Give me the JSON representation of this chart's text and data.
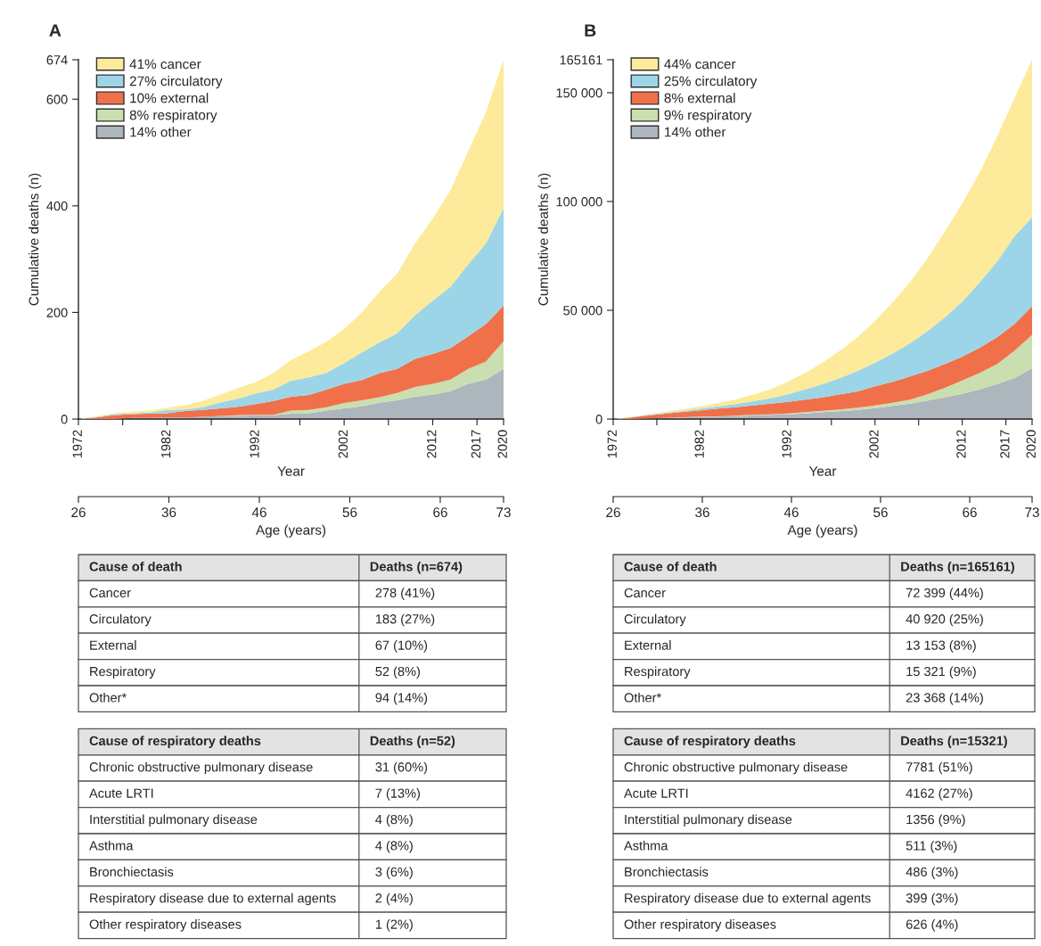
{
  "chart_data": [
    {
      "type": "area",
      "title": "A",
      "xlabel": "Year",
      "ylabel": "Cumulative deaths (n)",
      "x2label": "Age (years)",
      "stacked": true,
      "legend": "top left",
      "x": [
        1972,
        1974,
        1976,
        1978,
        1980,
        1982,
        1984,
        1986,
        1988,
        1990,
        1992,
        1994,
        1996,
        1998,
        2000,
        2002,
        2004,
        2006,
        2008,
        2010,
        2012,
        2014,
        2016,
        2018,
        2020
      ],
      "xlim": [
        1972,
        2020
      ],
      "xticks": [
        1972,
        {
          "value": 1977,
          "label": null
        },
        1982,
        {
          "value": 1987,
          "label": null
        },
        1992,
        {
          "value": 1997,
          "label": null
        },
        2002,
        {
          "value": 2007,
          "label": null
        },
        2012,
        2017,
        2020
      ],
      "x2lim": [
        26,
        73
      ],
      "x2ticks": [
        26,
        36,
        46,
        56,
        66,
        73
      ],
      "ylim": [
        0,
        674
      ],
      "yticks": [
        0,
        200,
        400,
        600,
        674
      ],
      "series": [
        {
          "name": "14% other",
          "color": "#adb5bd",
          "values": [
            0,
            0,
            0,
            2,
            2,
            3,
            3,
            4,
            6,
            6,
            7,
            7,
            10,
            11,
            16,
            20,
            24,
            31,
            35,
            42,
            46,
            52,
            66,
            74,
            94
          ]
        },
        {
          "name": "8% respiratory",
          "color": "#c9dfb0",
          "values": [
            0,
            0,
            0,
            0,
            0,
            0,
            0,
            0,
            0,
            1,
            1,
            1,
            6,
            6,
            6,
            10,
            11,
            10,
            14,
            18,
            20,
            22,
            28,
            34,
            52
          ]
        },
        {
          "name": "10% external",
          "color": "#f0704a",
          "values": [
            0,
            3,
            7,
            7,
            8,
            8,
            12,
            13,
            14,
            16,
            20,
            26,
            26,
            28,
            33,
            36,
            38,
            45,
            45,
            53,
            56,
            59,
            61,
            70,
            67
          ]
        },
        {
          "name": "27% circulatory",
          "color": "#9dd5e8",
          "values": [
            0,
            1,
            2,
            2,
            2,
            6,
            3,
            5,
            11,
            15,
            20,
            21,
            30,
            33,
            32,
            39,
            52,
            58,
            67,
            82,
            100,
            115,
            135,
            151,
            183
          ]
        },
        {
          "name": "41% cancer",
          "color": "#fdea9a",
          "values": [
            0,
            1,
            2,
            3,
            4,
            4,
            8,
            12,
            15,
            20,
            21,
            31,
            39,
            49,
            58,
            64,
            75,
            95,
            112,
            134,
            154,
            181,
            212,
            246,
            278
          ]
        }
      ],
      "annotations": [
        "Cause of death",
        "Deaths (n=674)",
        "Cancer",
        "278 (41%)",
        "Circulatory",
        "183 (27%)",
        "External",
        "67 (10%)",
        "Respiratory",
        "52 (8%)",
        "Other*",
        "94 (14%)",
        "Cause of respiratory deaths",
        "Deaths (n=52)",
        "Chronic obstructive pulmonary disease",
        "31 (60%)",
        "Acute LRTI",
        "7 (13%)",
        "Interstitial pulmonary disease",
        "4 (8%)",
        "Asthma",
        "4 (8%)",
        "Bronchiectasis",
        "3 (6%)",
        "Respiratory disease due to external agents",
        "2 (4%)",
        "Other respiratory diseases",
        "1 (2%)"
      ]
    },
    {
      "type": "area",
      "title": "B",
      "xlabel": "Year",
      "ylabel": "Cumulative deaths (n)",
      "x2label": "Age (years)",
      "stacked": true,
      "legend": "top left",
      "x": [
        1972,
        1974,
        1976,
        1978,
        1980,
        1982,
        1984,
        1986,
        1988,
        1990,
        1992,
        1994,
        1996,
        1998,
        2000,
        2002,
        2004,
        2006,
        2008,
        2010,
        2012,
        2014,
        2016,
        2018,
        2020
      ],
      "xlim": [
        1972,
        2020
      ],
      "xticks": [
        1972,
        {
          "value": 1977,
          "label": null
        },
        1982,
        {
          "value": 1987,
          "label": null
        },
        1992,
        {
          "value": 1997,
          "label": null
        },
        2002,
        {
          "value": 2007,
          "label": null
        },
        2012,
        2017,
        2020
      ],
      "x2lim": [
        26,
        73
      ],
      "x2ticks": [
        26,
        36,
        46,
        56,
        66,
        73
      ],
      "ylim": [
        0,
        165161
      ],
      "yticks": [
        0,
        {
          "value": 50000,
          "label": "50 000"
        },
        {
          "value": 100000,
          "label": "100 000"
        },
        {
          "value": 150000,
          "label": "150 000"
        },
        165161
      ],
      "series": [
        {
          "name": "14% other",
          "color": "#adb5bd",
          "values": [
            0,
            0,
            270,
            550,
            680,
            960,
            1090,
            1370,
            1640,
            1910,
            2190,
            2600,
            3140,
            3550,
            4240,
            5060,
            6010,
            7110,
            8480,
            9980,
            11620,
            13670,
            16130,
            18870,
            23368
          ]
        },
        {
          "name": "9% respiratory",
          "color": "#c9dfb0",
          "values": [
            0,
            0,
            0,
            0,
            140,
            130,
            140,
            130,
            270,
            280,
            410,
            540,
            690,
            820,
            950,
            1230,
            1510,
            1780,
            2870,
            4370,
            6150,
            7520,
            9160,
            12570,
            15321
          ]
        },
        {
          "name": "8% external",
          "color": "#f0704a",
          "values": [
            0,
            700,
            1370,
            1910,
            2460,
            2870,
            3550,
            3970,
            4380,
            4920,
            5330,
            5750,
            6150,
            6980,
            7520,
            8750,
            9570,
            10660,
            10800,
            10940,
            10940,
            11620,
            12300,
            12300,
            13153
          ]
        },
        {
          "name": "25% circulatory",
          "color": "#9dd5e8",
          "values": [
            0,
            150,
            260,
            410,
            550,
            820,
            1100,
            1370,
            1910,
            2460,
            3420,
            4780,
            6150,
            7520,
            9440,
            10930,
            12980,
            15310,
            18180,
            21460,
            25290,
            30070,
            34860,
            40330,
            40920
          ]
        },
        {
          "name": "44% cancer",
          "color": "#fdea9a",
          "values": [
            0,
            150,
            290,
            550,
            820,
            1100,
            1500,
            2050,
            3010,
            4100,
            5740,
            7520,
            9840,
            12570,
            15440,
            19140,
            23520,
            28020,
            33490,
            39370,
            45110,
            50580,
            57420,
            63570,
            72399
          ]
        }
      ],
      "annotations": [
        "Cause of death",
        "Deaths (n=165161)",
        "Cancer",
        "72 399 (44%)",
        "Circulatory",
        "40 920 (25%)",
        "External",
        "13 153 (8%)",
        "Respiratory",
        "15 321 (9%)",
        "Other*",
        "23 368 (14%)",
        "Cause of respiratory deaths",
        "Deaths (n=15321)",
        "Chronic obstructive pulmonary disease",
        "7781 (51%)",
        "Acute LRTI",
        "4162 (27%)",
        "Interstitial pulmonary disease",
        "1356 (9%)",
        "Asthma",
        "511 (3%)",
        "Bronchiectasis",
        "486 (3%)",
        "Respiratory disease due to external agents",
        "399 (3%)",
        "Other respiratory diseases",
        "626 (4%)"
      ]
    }
  ]
}
